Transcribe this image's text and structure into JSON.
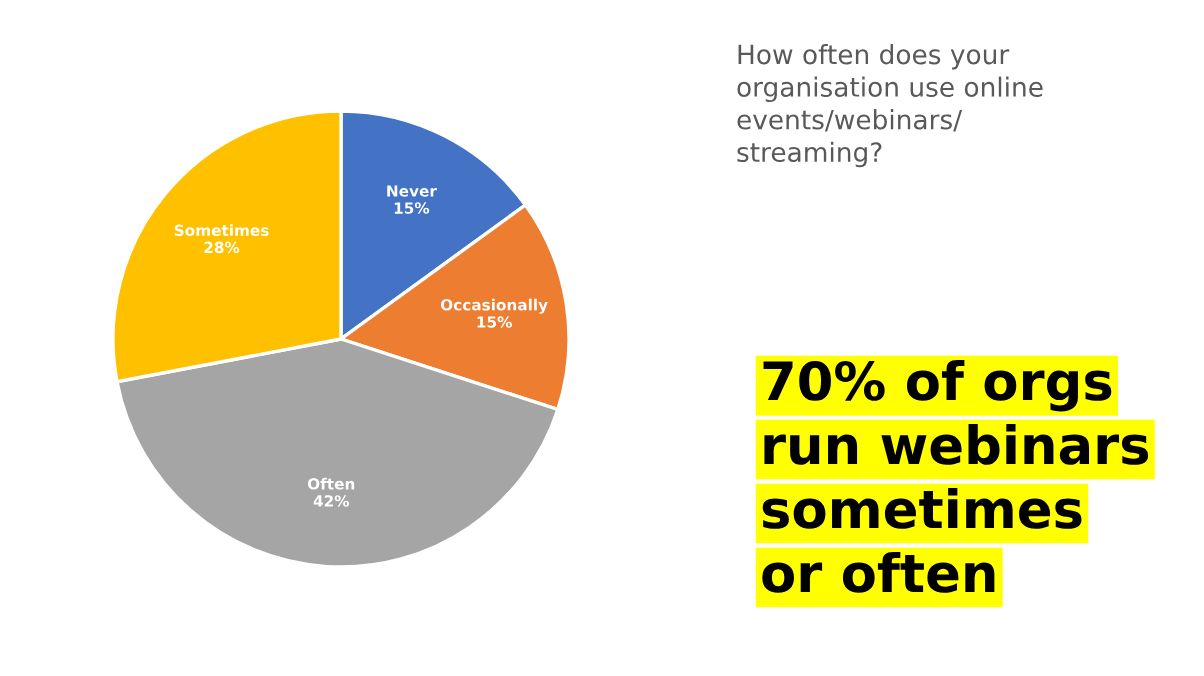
{
  "chart_data": {
    "type": "pie",
    "title": "How often does your\norganisation use online\nevents/webinars/\nstreaming?",
    "categories": [
      "Never",
      "Occasionally",
      "Often",
      "Sometimes"
    ],
    "values": [
      15,
      15,
      42,
      28
    ],
    "colors": [
      "#4472c4",
      "#ed7d31",
      "#a5a5a5",
      "#ffc000"
    ],
    "value_labels": [
      "15%",
      "15%",
      "42%",
      "28%"
    ],
    "legend": false,
    "annotations": [
      "70% of orgs\nrun webinars\nsometimes\nor often"
    ]
  }
}
